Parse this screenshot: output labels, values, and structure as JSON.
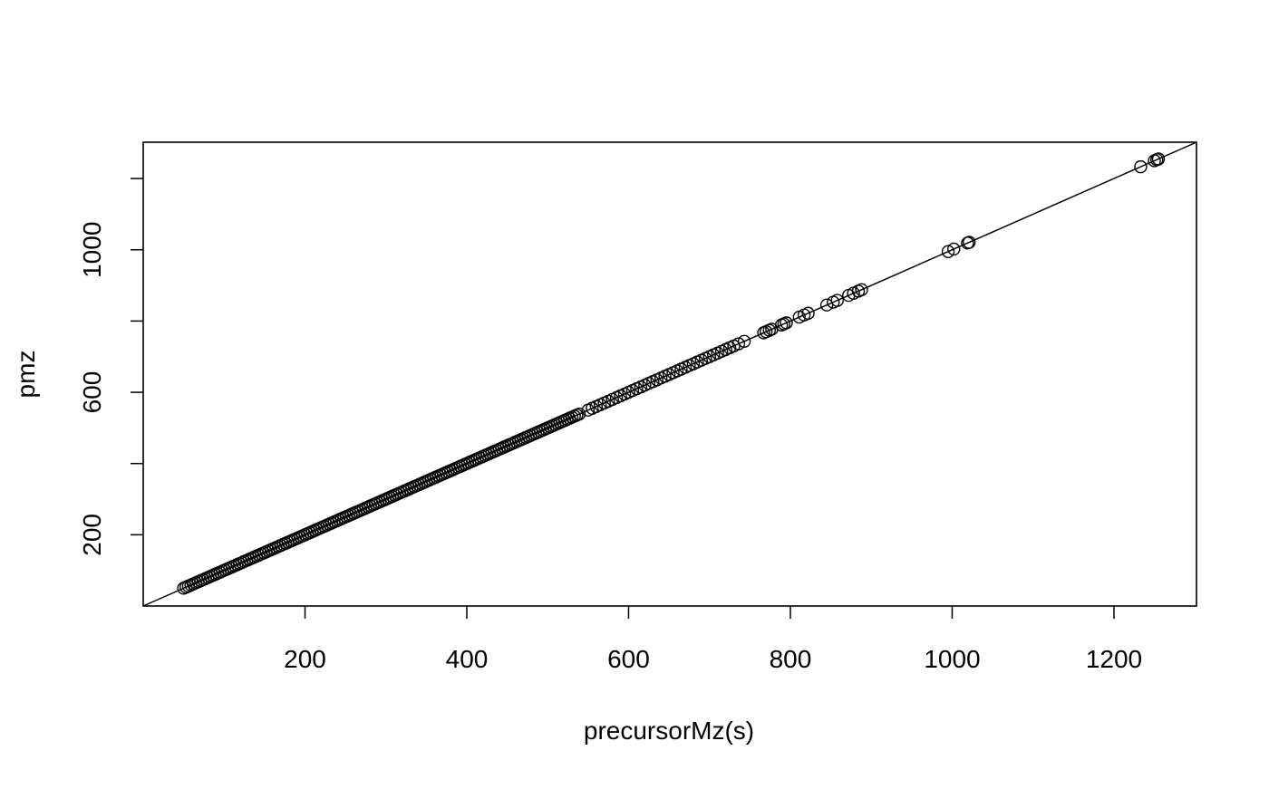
{
  "chart_data": {
    "type": "scatter",
    "title": "",
    "xlabel": "precursorMz(s)",
    "ylabel": "pmz",
    "xlim": [
      0,
      1302
    ],
    "ylim": [
      0,
      1302
    ],
    "xticks": [
      200,
      400,
      600,
      800,
      1000,
      1200
    ],
    "yticks": [
      200,
      600,
      1000
    ],
    "yticks_unlabeled": [
      400,
      800,
      1200
    ],
    "xtick_labels": [
      "200",
      "400",
      "600",
      "800",
      "1000",
      "1200"
    ],
    "ytick_labels": [
      "200",
      "600",
      "1000"
    ],
    "reference_line": {
      "type": "abline",
      "intercept": 0,
      "slope": 1,
      "label": "y = x"
    },
    "marker": "open-circle",
    "dense_range": {
      "from": 50,
      "to": 540,
      "step": 3
    },
    "sparse_points": [
      550,
      555,
      560,
      565,
      570,
      575,
      580,
      585,
      590,
      595,
      600,
      605,
      610,
      615,
      620,
      625,
      630,
      635,
      640,
      645,
      650,
      655,
      660,
      665,
      670,
      675,
      680,
      685,
      690,
      695,
      700,
      705,
      710,
      715,
      720,
      725,
      730,
      736,
      743,
      767,
      770,
      774,
      777,
      789,
      792,
      795,
      811,
      817,
      822,
      845,
      853,
      858,
      872,
      878,
      884,
      888,
      995,
      1002,
      1019,
      1021,
      1233,
      1250,
      1253,
      1255
    ],
    "colors": {
      "points": "#000000",
      "line": "#000000",
      "axis": "#000000",
      "background": "#ffffff"
    }
  }
}
